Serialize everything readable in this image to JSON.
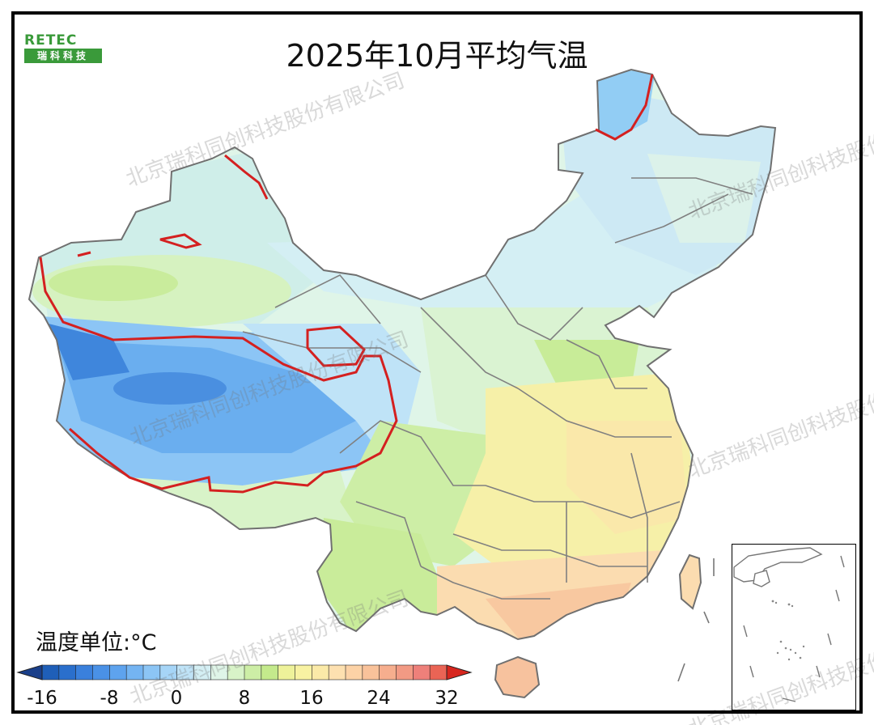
{
  "logo": {
    "top_text": "RETEC",
    "bottom_text": "瑞科科技"
  },
  "title": "2025年10月平均气温",
  "legend": {
    "unit_label": "温度单位:°C",
    "tick_labels": [
      "-16",
      "-8",
      "0",
      "8",
      "16",
      "24",
      "32"
    ],
    "colors": [
      "#1f5fb8",
      "#2a6fcc",
      "#3a80dc",
      "#4a91e6",
      "#5ea3ee",
      "#74b4f2",
      "#8cc5f5",
      "#a6d5f7",
      "#bfe3f7",
      "#d4eff4",
      "#dff5e8",
      "#d8f3c8",
      "#cdeea6",
      "#c4ea8c",
      "#eef29a",
      "#f8f2a2",
      "#fbeaa8",
      "#fde0b0",
      "#fcd2a6",
      "#f9c29a",
      "#f6ae8e",
      "#f29a84",
      "#ee807a",
      "#ea6455"
    ],
    "min_end_color": "#1a3f8a",
    "max_end_color": "#d7261e"
  },
  "watermark": "北京瑞科同创科技股份有限公司",
  "map_palette": {
    "cold": "#5ea3ee",
    "cool": "#a6d5f7",
    "mild": "#d4eff4",
    "green": "#d8f3c8",
    "lime": "#c4ea8c",
    "yellow": "#f6f0a8",
    "warm": "#fbe0b0",
    "hot": "#f7c19c",
    "zero_line": "#d42020",
    "border": "#7a7a7a"
  }
}
